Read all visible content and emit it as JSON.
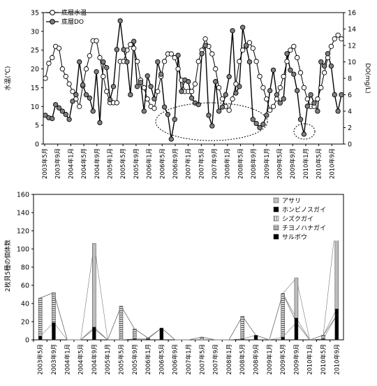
{
  "chart_data": [
    {
      "type": "line",
      "ylabel_left": "水温(℃)",
      "ylabel_right": "DO(mg/L)",
      "ylim_left": [
        0,
        35
      ],
      "yticks_left": [
        0,
        5,
        10,
        15,
        20,
        25,
        30,
        35
      ],
      "ylim_right": [
        0,
        16
      ],
      "yticks_right": [
        0,
        2,
        4,
        6,
        8,
        10,
        12,
        14,
        16
      ],
      "x_tick_labels": [
        "2003年5月",
        "2003年9月",
        "2004年1月",
        "2004年5月",
        "2004年9月",
        "2005年1月",
        "2005年5月",
        "2005年9月",
        "2006年1月",
        "2006年5月",
        "2006年9月",
        "2007年1月",
        "2007年5月",
        "2007年9月",
        "2008年1月",
        "2008年5月",
        "2008年9月",
        "2009年1月",
        "2009年5月",
        "2009年9月",
        "2010年1月",
        "2010年5月",
        "2010年9月"
      ],
      "legend_position": "top-left",
      "series": [
        {
          "name": "底層水温",
          "axis": "left",
          "marker": "open-circle",
          "values": [
            17.5,
            21.5,
            23,
            26,
            25.5,
            20,
            18,
            16,
            14,
            12,
            10,
            15.5,
            20,
            23.5,
            27.5,
            27.5,
            23,
            18,
            14,
            11,
            11,
            11,
            22,
            22,
            25,
            26.5,
            25.5,
            22,
            17,
            15,
            12,
            10,
            9.5,
            14,
            18,
            22,
            24,
            24,
            23,
            20,
            17,
            14,
            14,
            14,
            16,
            22,
            25,
            28,
            26,
            24,
            20,
            15,
            12,
            10,
            9,
            12,
            16,
            22,
            25,
            26,
            27,
            25.5,
            22,
            18,
            15,
            12,
            9,
            10,
            12,
            15,
            18,
            22,
            25,
            26,
            23,
            19,
            15,
            12,
            10,
            10,
            12,
            15,
            19,
            23,
            26,
            28,
            29,
            28
          ]
        },
        {
          "name": "底層DO",
          "axis": "right",
          "marker": "filled-circle",
          "values": [
            3.5,
            3.2,
            3.1,
            4.8,
            4.4,
            4,
            3.6,
            3,
            5.2,
            6,
            10,
            7.2,
            6,
            5.6,
            4,
            8.8,
            2.6,
            10,
            9.3,
            5.4,
            7,
            11.5,
            15,
            11.5,
            10,
            6,
            12.5,
            7,
            7.5,
            4,
            8.3,
            7,
            5.5,
            10,
            8.5,
            4.5,
            3.6,
            0.6,
            3,
            10.8,
            6.4,
            7.8,
            7.6,
            5.6,
            5,
            4.8,
            11,
            12,
            3.5,
            2.2,
            7.6,
            4,
            4.5,
            6,
            8.2,
            13.8,
            6.2,
            7,
            14.2,
            12,
            10,
            3,
            2.5,
            2,
            2.4,
            3.5,
            6.5,
            9,
            6,
            5,
            5.5,
            11,
            9,
            8.5,
            6.5,
            3,
            1.2,
            4.6,
            6,
            5,
            4,
            10,
            9.5,
            11,
            9.5,
            6,
            4,
            6
          ]
        }
      ],
      "annotations": [
        "dotted-ellipse-2006-2008",
        "dotted-ellipse-2009"
      ]
    },
    {
      "type": "bar",
      "stacked": true,
      "ylabel": "2枚貝5種の個体数",
      "ylim": [
        0,
        160
      ],
      "yticks": [
        0,
        20,
        40,
        60,
        80,
        100,
        120,
        140,
        160
      ],
      "legend_position": "top-right",
      "categories": [
        "2003年5月",
        "2003年9月",
        "2004年1月",
        "2004年5月",
        "2004年9月",
        "2005年1月",
        "2005年5月",
        "2005年9月",
        "2006年1月",
        "2006年5月",
        "2006年9月",
        "2007年1月",
        "2007年5月",
        "2007年9月",
        "2008年1月",
        "2008年5月",
        "2008年9月",
        "2009年1月",
        "2009年5月",
        "2009年9月",
        "2010年1月",
        "2010年5月",
        "2010年9月"
      ],
      "series": [
        {
          "name": "アサリ",
          "color": "#bcbcbc",
          "values": [
            0,
            0,
            0,
            0,
            92,
            0,
            0,
            0,
            0,
            0,
            0,
            0,
            0,
            0,
            0,
            0,
            0,
            0,
            0,
            44,
            0,
            0,
            103
          ]
        },
        {
          "name": "ホンビノスガイ",
          "color": "#000000",
          "values": [
            0,
            0,
            0,
            0,
            2,
            0,
            0,
            0,
            0,
            0,
            0,
            0,
            0,
            0,
            0,
            0,
            0,
            0,
            0,
            5,
            0,
            0,
            7
          ]
        },
        {
          "name": "シズクガイ",
          "color": "#8a8a8a",
          "values": [
            0,
            0,
            0,
            0,
            0,
            0,
            0,
            0,
            0,
            0,
            0,
            0,
            0,
            0,
            0,
            0,
            0,
            0,
            0,
            0,
            0,
            0,
            0
          ]
        },
        {
          "name": "チヨノハナガイ",
          "color": "#9a9a9a",
          "values": [
            42,
            33,
            0,
            0,
            0,
            0,
            37,
            11,
            1,
            0,
            0,
            0,
            3,
            0,
            0,
            25,
            0,
            0,
            48,
            0,
            0,
            4,
            0
          ]
        },
        {
          "name": "サルボウ",
          "color": "#000000",
          "values": [
            4,
            19,
            0,
            0,
            12,
            0,
            0,
            1,
            1,
            13,
            0,
            0,
            0,
            0,
            0,
            1,
            5,
            0,
            3,
            19,
            0,
            1,
            27
          ]
        }
      ]
    }
  ]
}
